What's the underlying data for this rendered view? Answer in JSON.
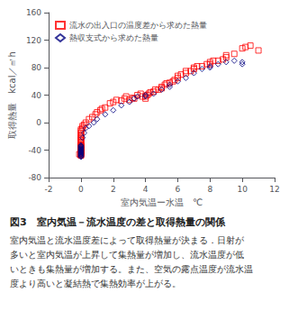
{
  "chart_data": {
    "type": "scatter",
    "title": "図3　室内気温－流水温度の差と取得熱量の関係",
    "annotations": [
      "室内気温と流水温度差によって取得熱量が決まる．日射が",
      "多いと室内気温が上昇して集熱量が増加し、流水温度が低",
      "いときも集熱量が増加する。また、空気の露点温度が流水温",
      "度より高いと凝結熱で集熱効率が上がる。"
    ],
    "x_label": "室内気温ー水温　℃",
    "y_label": "取得熱量　kcal／㎡h",
    "xlim": [
      -2,
      12
    ],
    "ylim": [
      -80,
      160
    ],
    "xticks": [
      -2,
      0,
      2,
      4,
      6,
      8,
      10,
      12
    ],
    "yticks": [
      -80,
      -40,
      0,
      40,
      80,
      120,
      160
    ],
    "grid": false,
    "legend": "upper left",
    "series": [
      {
        "name": "流水の出入口の温度差から求めた熱量",
        "color": "red",
        "marker": "square",
        "x": [
          -0.1,
          0.0,
          0.0,
          0.0,
          0.0,
          0.0,
          0.0,
          0.0,
          0.0,
          0.0,
          0.0,
          0.0,
          0.0,
          0.0,
          0.0,
          0.0,
          0.0,
          0.0,
          0.0,
          0.0,
          0.0,
          0.0,
          0.0,
          0.0,
          0.0,
          0.0,
          0.0,
          0.0,
          0.0,
          0.0,
          0.0,
          0.1,
          0.1,
          0.2,
          0.3,
          0.5,
          0.7,
          0.9,
          1.0,
          1.2,
          1.3,
          1.5,
          1.8,
          2.0,
          2.2,
          2.5,
          2.7,
          2.8,
          3.0,
          3.2,
          3.3,
          3.5,
          3.7,
          3.8,
          4.0,
          4.0,
          4.1,
          4.2,
          4.3,
          4.5,
          4.6,
          4.8,
          5.0,
          5.0,
          5.2,
          5.3,
          5.5,
          5.7,
          5.8,
          6.0,
          6.0,
          6.2,
          6.5,
          6.5,
          6.8,
          7.0,
          7.0,
          7.2,
          7.5,
          7.8,
          8.0,
          8.0,
          8.2,
          8.5,
          8.8,
          9.0,
          9.0,
          9.5,
          10.0,
          10.2,
          10.5,
          11.0
        ],
        "values": [
          -46,
          -48,
          -47,
          -46,
          -45,
          -44,
          -43,
          -43,
          -42,
          -41,
          -40,
          -40,
          -39,
          -38,
          -37,
          -36,
          -35,
          -35,
          -34,
          -33,
          -32,
          -30,
          -28,
          -26,
          -24,
          -22,
          -20,
          -18,
          -15,
          -12,
          -10,
          -8,
          -5,
          -3,
          0,
          5,
          8,
          12,
          15,
          18,
          20,
          22,
          28,
          30,
          33,
          32,
          35,
          38,
          33,
          36,
          35,
          40,
          42,
          38,
          35,
          38,
          40,
          42,
          44,
          45,
          48,
          48,
          50,
          52,
          55,
          57,
          58,
          60,
          62,
          65,
          68,
          70,
          72,
          75,
          75,
          78,
          80,
          82,
          82,
          85,
          85,
          88,
          90,
          90,
          92,
          95,
          98,
          100,
          108,
          110,
          112,
          105
        ]
      },
      {
        "name": "熱収支式から求めた熱量",
        "color": "#000080",
        "marker": "diamond",
        "x": [
          0.0,
          0.0,
          0.0,
          0.0,
          0.0,
          0.0,
          0.0,
          0.0,
          0.0,
          0.0,
          0.0,
          0.0,
          0.0,
          0.0,
          0.0,
          0.0,
          0.0,
          0.0,
          0.1,
          0.2,
          0.3,
          0.5,
          0.8,
          1.0,
          1.5,
          2.0,
          2.5,
          3.0,
          3.3,
          3.5,
          4.0,
          4.0,
          4.5,
          5.0,
          5.5,
          5.5,
          6.0,
          6.5,
          7.0,
          7.5,
          8.0,
          8.0,
          8.5,
          9.0,
          9.5,
          10.0,
          10.0
        ],
        "values": [
          -50,
          -49,
          -48,
          -47,
          -46,
          -45,
          -44,
          -43,
          -42,
          -41,
          -40,
          -39,
          -38,
          -37,
          -36,
          -35,
          -34,
          -33,
          -22,
          -15,
          -8,
          -5,
          0,
          5,
          12,
          18,
          25,
          30,
          35,
          38,
          38,
          40,
          42,
          48,
          52,
          55,
          60,
          65,
          72,
          78,
          80,
          82,
          85,
          88,
          90,
          85,
          88
        ]
      }
    ]
  }
}
